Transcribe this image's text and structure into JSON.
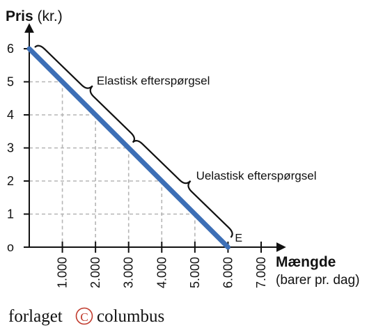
{
  "chart_data": {
    "type": "line",
    "title": "",
    "ylabel": "Pris",
    "ylabel_unit": "(kr.)",
    "xlabel": "Mængde",
    "xlabel_unit": "(barer pr. dag)",
    "xlim": [
      0,
      7000
    ],
    "ylim": [
      0,
      6
    ],
    "x_ticks": [
      1000,
      2000,
      3000,
      4000,
      5000,
      6000,
      7000
    ],
    "x_tick_labels": [
      "1.000",
      "2.000",
      "3.000",
      "4.000",
      "5.000",
      "6.000",
      "7.000"
    ],
    "y_ticks": [
      0,
      1,
      2,
      3,
      4,
      5,
      6
    ],
    "y_tick_labels": [
      "o",
      "1",
      "2",
      "3",
      "4",
      "5",
      "6"
    ],
    "grid": "dashed guide lines from points on the line to both axes",
    "legend": "none",
    "series": [
      {
        "color": "#3d6fb6",
        "x": [
          0,
          6000
        ],
        "y": [
          6,
          0
        ]
      }
    ],
    "guide_points": [
      {
        "x": 1000,
        "y": 5
      },
      {
        "x": 2000,
        "y": 4
      },
      {
        "x": 3000,
        "y": 3
      },
      {
        "x": 4000,
        "y": 2
      },
      {
        "x": 5000,
        "y": 1
      }
    ],
    "annotations": [
      {
        "text": "Elastisk efterspørgsel",
        "from": [
          0,
          6
        ],
        "to": [
          3000,
          3
        ]
      },
      {
        "text": "Uelastisk efterspørgsel",
        "from": [
          3000,
          3
        ],
        "to": [
          6000,
          0
        ]
      },
      {
        "text": "E",
        "at": [
          6000,
          0
        ]
      }
    ]
  },
  "publisher": {
    "name_left": "forlaget",
    "symbol": "C",
    "name_right": "columbus"
  }
}
